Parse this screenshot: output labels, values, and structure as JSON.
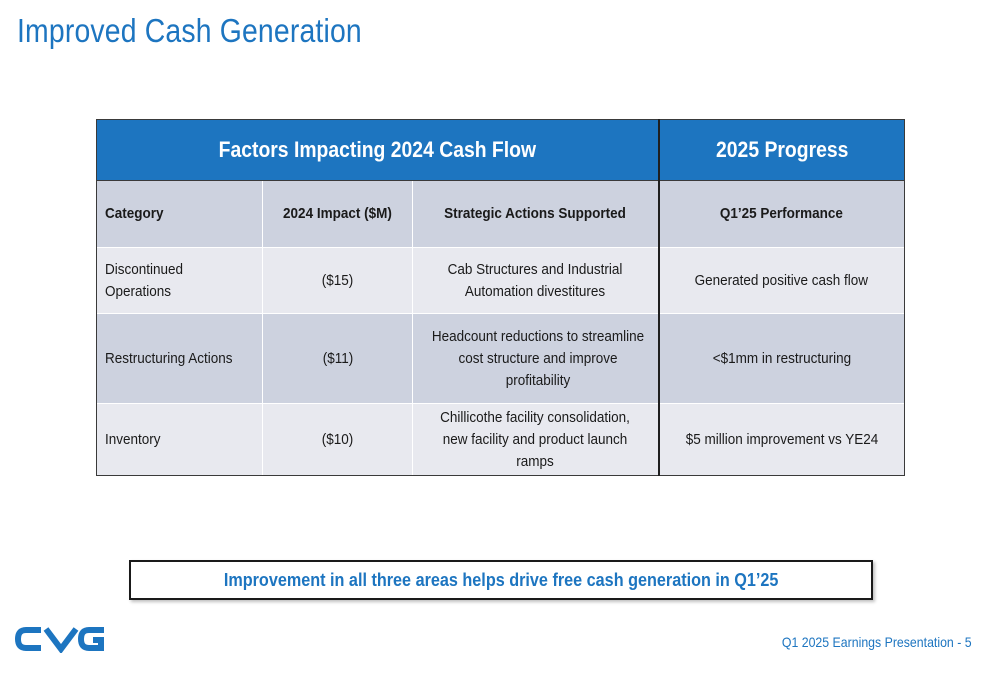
{
  "slide": {
    "title": "Improved Cash Generation",
    "footer": "Q1 2025 Earnings Presentation - 5",
    "callout": "Improvement in all three areas helps drive free cash generation in Q1’25",
    "logo_text": "CVG",
    "brand_color": "#1d75c0"
  },
  "table": {
    "group_headers": [
      "Factors Impacting 2024 Cash Flow",
      "2025 Progress"
    ],
    "columns": [
      "Category",
      "2024 Impact ($M)",
      "Strategic Actions Supported",
      "Q1’25 Performance"
    ],
    "rows": [
      {
        "category": "Discontinued Operations",
        "impact": "($15)",
        "actions": "Cab Structures and Industrial Automation divestitures",
        "performance": "Generated positive cash flow"
      },
      {
        "category": "Restructuring Actions",
        "impact": "($11)",
        "actions": "Headcount reductions to streamline cost structure and improve profitability",
        "performance": "<$1mm in restructuring"
      },
      {
        "category": "Inventory",
        "impact": "($10)",
        "actions": "Chillicothe facility consolidation, new facility and product launch ramps",
        "performance": "$5 million improvement vs YE24"
      }
    ]
  }
}
